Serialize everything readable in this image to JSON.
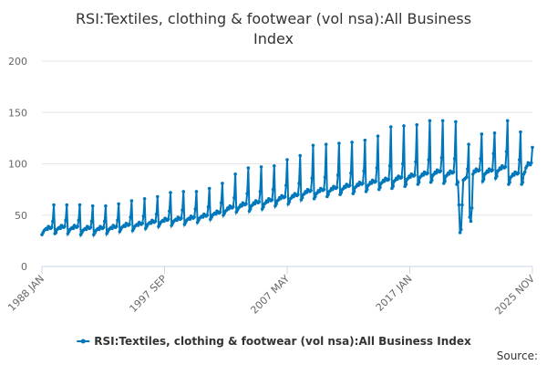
{
  "chart_data": {
    "type": "line",
    "title_line1": "RSI:Textiles, clothing & footwear (vol nsa):All Business",
    "title_line2": "Index",
    "xlabel": "",
    "ylabel": "",
    "ylim": [
      0,
      200
    ],
    "yticks": [
      0,
      50,
      100,
      150,
      200
    ],
    "x_start": "1988 JAN",
    "x_end": "2025 NOV",
    "xtick_labels": [
      "1988 JAN",
      "1997 SEP",
      "2007 MAY",
      "2017 JAN",
      "2025 NOV"
    ],
    "grid": true,
    "legend_position": "bottom",
    "credit": "Source:",
    "color": "#0077bb",
    "series": [
      {
        "name": "RSI:Textiles, clothing & footwear (vol nsa):All Business Index",
        "values_by_year": {
          "1988": [
            31,
            33,
            35,
            36,
            37,
            36,
            39,
            38,
            37,
            38,
            44,
            60
          ],
          "1989": [
            32,
            33,
            36,
            37,
            38,
            37,
            40,
            39,
            38,
            39,
            45,
            60
          ],
          "1990": [
            32,
            34,
            36,
            37,
            38,
            37,
            40,
            39,
            38,
            39,
            45,
            60
          ],
          "1991": [
            31,
            33,
            35,
            36,
            37,
            36,
            39,
            38,
            37,
            38,
            44,
            59
          ],
          "1992": [
            31,
            33,
            35,
            36,
            37,
            36,
            39,
            38,
            37,
            38,
            44,
            59
          ],
          "1993": [
            32,
            34,
            36,
            37,
            38,
            37,
            40,
            39,
            38,
            39,
            45,
            61
          ],
          "1994": [
            34,
            36,
            38,
            39,
            40,
            39,
            42,
            41,
            40,
            41,
            48,
            64
          ],
          "1995": [
            35,
            37,
            39,
            40,
            41,
            40,
            43,
            42,
            41,
            42,
            49,
            66
          ],
          "1996": [
            37,
            39,
            41,
            42,
            43,
            42,
            45,
            44,
            43,
            44,
            51,
            68
          ],
          "1997": [
            39,
            41,
            43,
            44,
            45,
            44,
            47,
            46,
            45,
            46,
            54,
            72
          ],
          "1998": [
            40,
            42,
            44,
            45,
            46,
            45,
            48,
            47,
            46,
            47,
            55,
            73
          ],
          "1999": [
            41,
            43,
            45,
            46,
            47,
            46,
            49,
            48,
            47,
            48,
            56,
            73
          ],
          "2000": [
            43,
            45,
            47,
            48,
            49,
            48,
            51,
            50,
            49,
            50,
            58,
            76
          ],
          "2001": [
            46,
            48,
            50,
            51,
            52,
            51,
            54,
            53,
            52,
            53,
            62,
            81
          ],
          "2002": [
            50,
            52,
            54,
            55,
            57,
            56,
            59,
            58,
            57,
            58,
            67,
            90
          ],
          "2003": [
            53,
            55,
            57,
            58,
            60,
            59,
            62,
            61,
            60,
            61,
            71,
            96
          ],
          "2004": [
            54,
            56,
            59,
            60,
            62,
            61,
            64,
            63,
            62,
            63,
            73,
            97
          ],
          "2005": [
            56,
            58,
            61,
            62,
            64,
            63,
            66,
            65,
            64,
            65,
            75,
            98
          ],
          "2006": [
            59,
            61,
            64,
            65,
            67,
            66,
            69,
            68,
            67,
            68,
            79,
            104
          ],
          "2007": [
            61,
            63,
            66,
            67,
            69,
            68,
            71,
            70,
            69,
            70,
            81,
            108
          ],
          "2008": [
            65,
            67,
            70,
            71,
            73,
            72,
            75,
            74,
            73,
            74,
            86,
            118
          ],
          "2009": [
            66,
            68,
            71,
            72,
            74,
            73,
            76,
            75,
            74,
            75,
            87,
            119
          ],
          "2010": [
            68,
            70,
            73,
            74,
            76,
            75,
            78,
            77,
            76,
            77,
            89,
            120
          ],
          "2011": [
            70,
            72,
            75,
            76,
            78,
            77,
            80,
            79,
            78,
            79,
            91,
            121
          ],
          "2012": [
            71,
            73,
            77,
            78,
            80,
            79,
            82,
            81,
            80,
            81,
            93,
            123
          ],
          "2013": [
            73,
            75,
            79,
            80,
            82,
            81,
            84,
            83,
            82,
            83,
            96,
            127
          ],
          "2014": [
            75,
            77,
            81,
            82,
            84,
            83,
            86,
            85,
            84,
            85,
            98,
            136
          ],
          "2015": [
            76,
            78,
            83,
            84,
            86,
            85,
            88,
            87,
            86,
            87,
            100,
            137
          ],
          "2016": [
            78,
            80,
            85,
            86,
            88,
            87,
            90,
            89,
            88,
            89,
            102,
            138
          ],
          "2017": [
            80,
            82,
            87,
            88,
            90,
            89,
            92,
            91,
            90,
            91,
            104,
            142
          ],
          "2018": [
            82,
            84,
            89,
            90,
            92,
            91,
            94,
            93,
            92,
            93,
            106,
            142
          ],
          "2019": [
            81,
            83,
            88,
            89,
            91,
            90,
            93,
            92,
            91,
            92,
            105,
            141
          ],
          "2020": [
            80,
            82,
            60,
            33,
            36,
            60,
            84,
            85,
            86,
            87,
            95,
            119
          ],
          "2021": [
            48,
            44,
            57,
            90,
            93,
            92,
            95,
            94,
            93,
            94,
            105,
            129
          ],
          "2022": [
            83,
            85,
            90,
            91,
            93,
            92,
            95,
            94,
            93,
            94,
            110,
            130
          ],
          "2023": [
            86,
            88,
            93,
            94,
            96,
            95,
            98,
            97,
            96,
            97,
            112,
            142
          ],
          "2024": [
            80,
            82,
            87,
            88,
            90,
            89,
            92,
            91,
            90,
            91,
            104,
            131
          ],
          "2025": [
            80,
            82,
            90,
            92,
            96,
            98,
            101,
            100,
            99,
            101,
            116
          ]
        }
      }
    ]
  }
}
